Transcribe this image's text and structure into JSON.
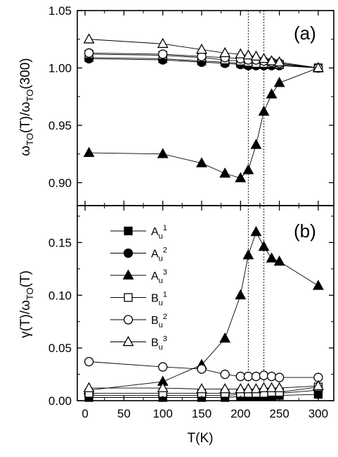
{
  "chart_data": [
    {
      "type": "line",
      "panel_label": "(a)",
      "ylabel": "ω_TO(T)/ω_TO(300)",
      "ylim": [
        0.88,
        1.05
      ],
      "yticks": [
        0.9,
        0.95,
        1.0,
        1.05
      ],
      "ytick_labels": [
        "0.90",
        "0.95",
        "1.00",
        "1.05"
      ],
      "xlim": [
        -10,
        320
      ],
      "vlines": [
        210,
        230
      ],
      "series": [
        {
          "name": "A_u^1",
          "marker": "filled-square",
          "x": [
            5,
            100,
            150,
            180,
            200,
            210,
            220,
            230,
            240,
            250,
            300
          ],
          "y": [
            1.009,
            1.008,
            1.006,
            1.005,
            1.004,
            1.003,
            1.003,
            1.003,
            1.003,
            1.003,
            1.0
          ]
        },
        {
          "name": "A_u^2",
          "marker": "filled-circle",
          "x": [
            5,
            100,
            150,
            180,
            200,
            210,
            220,
            230,
            240,
            250,
            300
          ],
          "y": [
            1.008,
            1.007,
            1.005,
            1.004,
            1.003,
            1.002,
            1.002,
            1.002,
            1.002,
            1.002,
            1.0
          ]
        },
        {
          "name": "A_u^3",
          "marker": "filled-triangle",
          "x": [
            5,
            100,
            150,
            180,
            200,
            210,
            220,
            230,
            240,
            250,
            300
          ],
          "y": [
            0.926,
            0.925,
            0.917,
            0.908,
            0.904,
            0.911,
            0.933,
            0.962,
            0.977,
            0.987,
            1.0
          ]
        },
        {
          "name": "B_u^1",
          "marker": "open-square",
          "x": [
            5,
            100,
            150,
            180,
            200,
            210,
            220,
            230,
            240,
            250,
            300
          ],
          "y": [
            1.012,
            1.011,
            1.009,
            1.007,
            1.006,
            1.005,
            1.004,
            1.004,
            1.004,
            1.003,
            1.0
          ]
        },
        {
          "name": "B_u^2",
          "marker": "open-circle",
          "x": [
            5,
            100,
            150,
            180,
            200,
            210,
            220,
            230,
            240,
            250,
            300
          ],
          "y": [
            1.013,
            1.012,
            1.01,
            1.009,
            1.008,
            1.007,
            1.007,
            1.006,
            1.005,
            1.004,
            1.0
          ]
        },
        {
          "name": "B_u^3",
          "marker": "open-triangle",
          "x": [
            5,
            100,
            150,
            180,
            200,
            210,
            220,
            230,
            240,
            250,
            300
          ],
          "y": [
            1.025,
            1.021,
            1.016,
            1.013,
            1.012,
            1.011,
            1.01,
            1.008,
            1.006,
            1.005,
            1.0
          ]
        }
      ]
    },
    {
      "type": "line",
      "panel_label": "(b)",
      "xlabel": "T(K)",
      "ylabel": "γ(T)/ω_TO(T)",
      "xlim": [
        -10,
        320
      ],
      "xticks": [
        0,
        50,
        100,
        150,
        200,
        250,
        300
      ],
      "xtick_labels": [
        "0",
        "50",
        "100",
        "150",
        "200",
        "250",
        "300"
      ],
      "ylim": [
        0,
        0.185
      ],
      "yticks": [
        0.0,
        0.05,
        0.1,
        0.15
      ],
      "ytick_labels": [
        "0.00",
        "0.05",
        "0.10",
        "0.15"
      ],
      "vlines": [
        210,
        230
      ],
      "legend_position": "top-left",
      "series": [
        {
          "name": "A_u^1",
          "label_base": "A",
          "label_sub": "u",
          "label_sup": "1",
          "marker": "filled-square",
          "x": [
            5,
            100,
            150,
            180,
            200,
            210,
            220,
            230,
            240,
            250,
            300
          ],
          "y": [
            0.003,
            0.003,
            0.003,
            0.003,
            0.004,
            0.004,
            0.004,
            0.004,
            0.004,
            0.005,
            0.006
          ]
        },
        {
          "name": "A_u^2",
          "label_base": "A",
          "label_sub": "u",
          "label_sup": "2",
          "marker": "filled-circle",
          "x": [
            5,
            100,
            150,
            180,
            200,
            210,
            220,
            230,
            240,
            250,
            300
          ],
          "y": [
            0.005,
            0.005,
            0.005,
            0.005,
            0.006,
            0.006,
            0.006,
            0.006,
            0.007,
            0.007,
            0.01
          ]
        },
        {
          "name": "A_u^3",
          "label_base": "A",
          "label_sub": "u",
          "label_sup": "3",
          "marker": "filled-triangle",
          "x": [
            5,
            100,
            150,
            180,
            200,
            210,
            220,
            230,
            240,
            250,
            300
          ],
          "y": [
            0.01,
            0.018,
            0.034,
            0.059,
            0.1,
            0.138,
            0.16,
            0.146,
            0.135,
            0.132,
            0.109
          ]
        },
        {
          "name": "B_u^1",
          "label_base": "B",
          "label_sub": "u",
          "label_sup": "1",
          "marker": "open-square",
          "x": [
            5,
            100,
            150,
            180,
            200,
            210,
            220,
            230,
            240,
            250,
            300
          ],
          "y": [
            0.007,
            0.007,
            0.007,
            0.007,
            0.007,
            0.007,
            0.007,
            0.007,
            0.008,
            0.008,
            0.013
          ]
        },
        {
          "name": "B_u^2",
          "label_base": "B",
          "label_sub": "u",
          "label_sup": "2",
          "marker": "open-circle",
          "x": [
            5,
            100,
            150,
            180,
            200,
            210,
            220,
            230,
            240,
            250,
            300
          ],
          "y": [
            0.037,
            0.032,
            0.03,
            0.025,
            0.023,
            0.023,
            0.023,
            0.024,
            0.023,
            0.022,
            0.022
          ]
        },
        {
          "name": "B_u^3",
          "label_base": "B",
          "label_sub": "u",
          "label_sup": "3",
          "marker": "open-triangle",
          "x": [
            5,
            100,
            150,
            180,
            200,
            210,
            220,
            230,
            240,
            250,
            300
          ],
          "y": [
            0.012,
            0.012,
            0.011,
            0.011,
            0.011,
            0.011,
            0.011,
            0.012,
            0.012,
            0.012,
            0.014
          ]
        }
      ]
    }
  ]
}
